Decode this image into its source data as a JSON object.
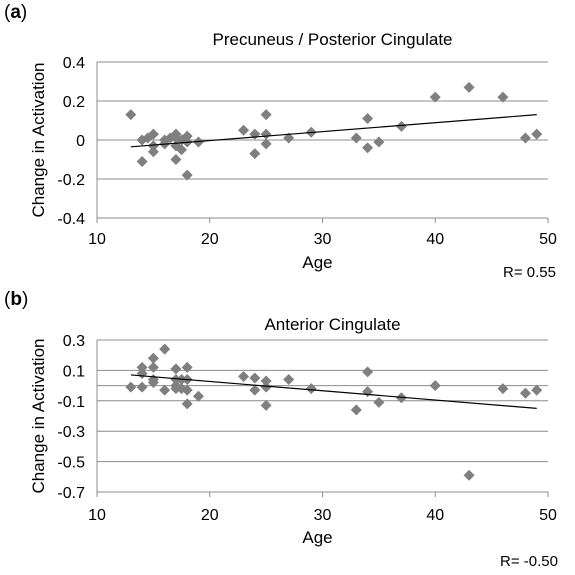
{
  "chart_data": [
    {
      "panel": "a",
      "type": "scatter",
      "title": "Precuneus / Posterior Cingulate",
      "xlabel": "Age",
      "ylabel": "Change in Activation",
      "xlim": [
        10,
        50
      ],
      "ylim": [
        -0.4,
        0.4
      ],
      "xticks": [
        "10",
        "20",
        "30",
        "40",
        "50"
      ],
      "yticks": [
        "-0.4",
        "-0.2",
        "0",
        "0.2",
        "0.4"
      ],
      "grid": "horizontal",
      "point_color": "#7f7f7f",
      "annotation": "R= 0.55",
      "trendline": [
        [
          13,
          -0.035
        ],
        [
          49,
          0.13
        ]
      ],
      "points": [
        [
          13,
          0.13
        ],
        [
          14,
          0.0
        ],
        [
          14,
          -0.11
        ],
        [
          14.5,
          0.01
        ],
        [
          15,
          0.03
        ],
        [
          15,
          -0.03
        ],
        [
          15,
          -0.06
        ],
        [
          16,
          0.0
        ],
        [
          16,
          -0.02
        ],
        [
          16.5,
          0.01
        ],
        [
          17,
          0.03
        ],
        [
          17,
          0.01
        ],
        [
          17,
          -0.03
        ],
        [
          17,
          -0.1
        ],
        [
          17.5,
          -0.05
        ],
        [
          17.5,
          0.0
        ],
        [
          18,
          0.02
        ],
        [
          18,
          -0.01
        ],
        [
          18,
          -0.18
        ],
        [
          19,
          -0.01
        ],
        [
          23,
          0.05
        ],
        [
          24,
          0.03
        ],
        [
          24,
          -0.07
        ],
        [
          25,
          0.13
        ],
        [
          25,
          0.03
        ],
        [
          25,
          -0.02
        ],
        [
          27,
          0.01
        ],
        [
          29,
          0.04
        ],
        [
          33,
          0.01
        ],
        [
          34,
          0.11
        ],
        [
          34,
          -0.04
        ],
        [
          35,
          -0.01
        ],
        [
          37,
          0.07
        ],
        [
          40,
          0.22
        ],
        [
          43,
          0.27
        ],
        [
          46,
          0.22
        ],
        [
          48,
          0.01
        ],
        [
          49,
          0.03
        ]
      ]
    },
    {
      "panel": "b",
      "type": "scatter",
      "title": "Anterior Cingulate",
      "xlabel": "Age",
      "ylabel": "Change in Activation",
      "xlim": [
        10,
        50
      ],
      "ylim": [
        -0.7,
        0.3
      ],
      "xticks": [
        "10",
        "20",
        "30",
        "40",
        "50"
      ],
      "yticks": [
        "-0.7",
        "-0.5",
        "-0.3",
        "-0.1",
        "0.1",
        "0.3"
      ],
      "grid": "horizontal",
      "point_color": "#7f7f7f",
      "annotation": "R= -0.50",
      "trendline": [
        [
          13,
          0.07
        ],
        [
          49,
          -0.15
        ]
      ],
      "points": [
        [
          13,
          -0.01
        ],
        [
          14,
          -0.01
        ],
        [
          14,
          0.08
        ],
        [
          14,
          0.12
        ],
        [
          15,
          0.18
        ],
        [
          15,
          0.12
        ],
        [
          15,
          0.04
        ],
        [
          15,
          0.02
        ],
        [
          16,
          0.24
        ],
        [
          16,
          -0.03
        ],
        [
          17,
          0.11
        ],
        [
          17,
          0.04
        ],
        [
          17,
          0.0
        ],
        [
          17,
          -0.02
        ],
        [
          17.5,
          0.04
        ],
        [
          17.5,
          -0.02
        ],
        [
          18,
          0.12
        ],
        [
          18,
          0.04
        ],
        [
          18,
          -0.03
        ],
        [
          18,
          -0.12
        ],
        [
          19,
          -0.07
        ],
        [
          23,
          0.06
        ],
        [
          24,
          0.05
        ],
        [
          24,
          -0.03
        ],
        [
          25,
          0.03
        ],
        [
          25,
          -0.01
        ],
        [
          25,
          -0.13
        ],
        [
          27,
          0.04
        ],
        [
          29,
          -0.02
        ],
        [
          33,
          -0.16
        ],
        [
          34,
          0.09
        ],
        [
          34,
          -0.04
        ],
        [
          35,
          -0.11
        ],
        [
          37,
          -0.08
        ],
        [
          40,
          0.0
        ],
        [
          43,
          -0.59
        ],
        [
          46,
          -0.02
        ],
        [
          48,
          -0.05
        ],
        [
          49,
          -0.03
        ]
      ]
    }
  ]
}
